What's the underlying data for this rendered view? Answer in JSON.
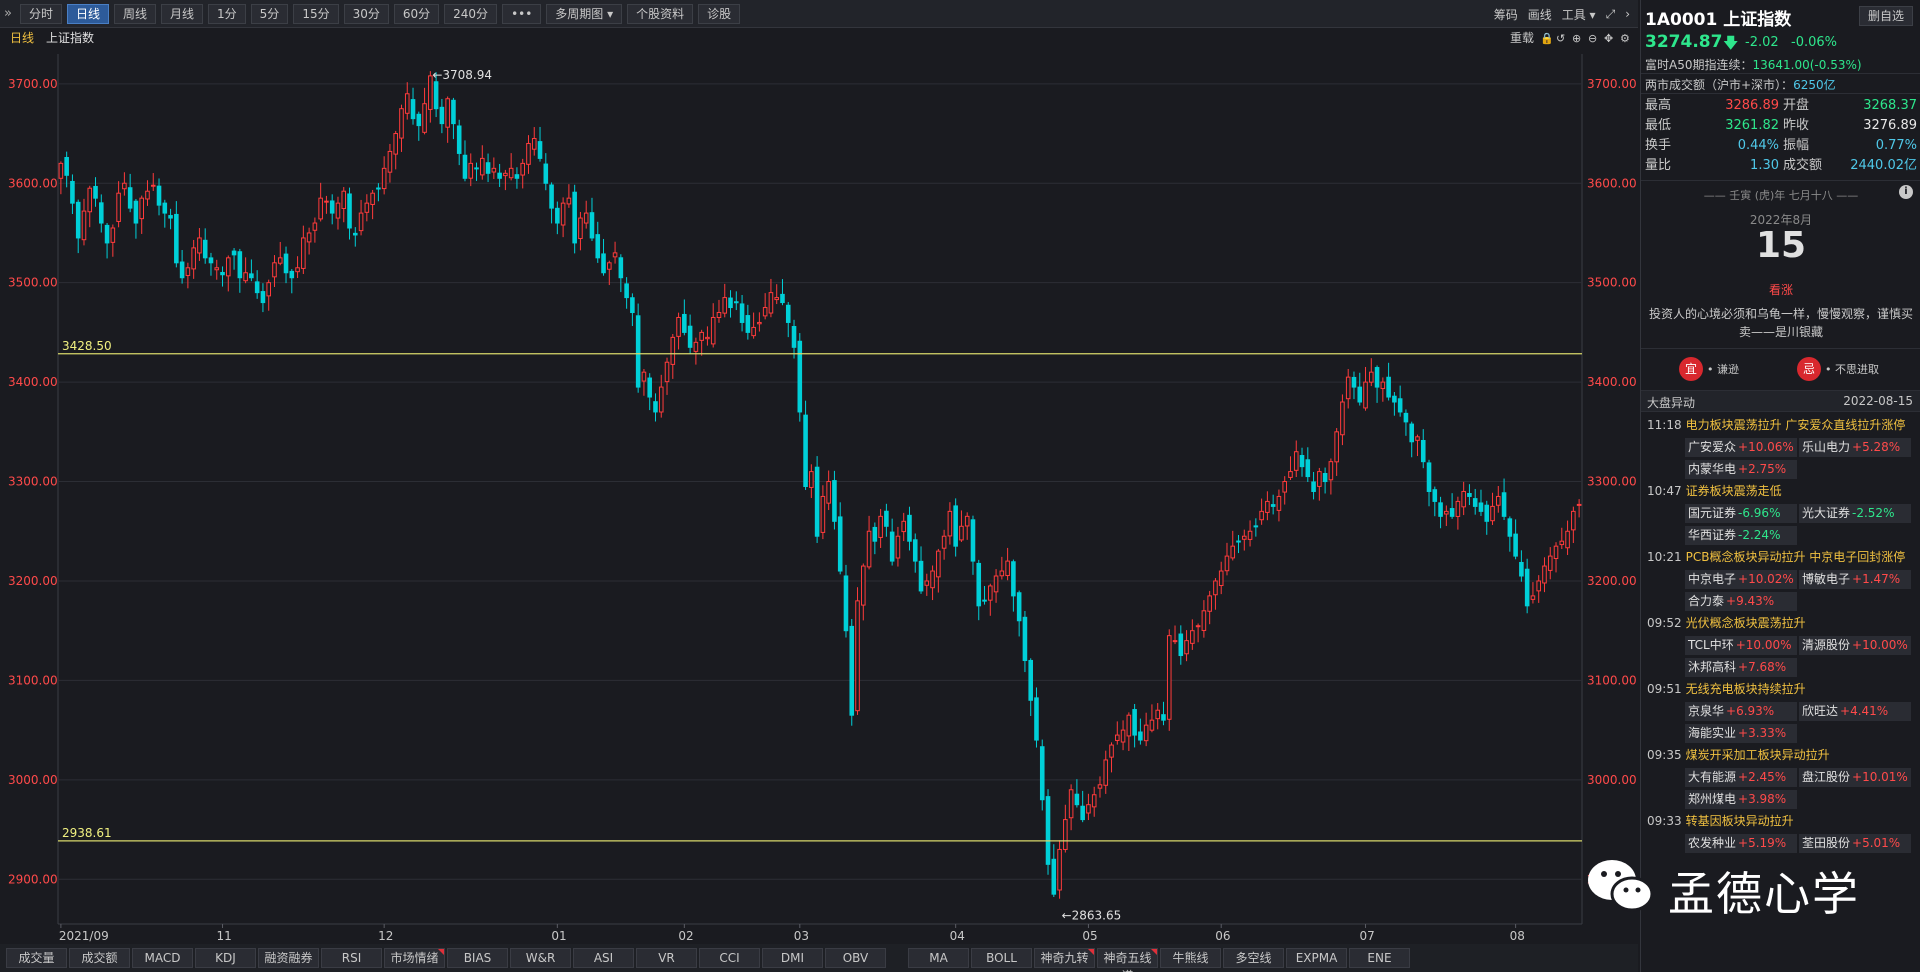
{
  "toolbar": {
    "collapse_icon": "double-chevron-right-icon",
    "buttons": [
      "分时",
      "日线",
      "周线",
      "月线",
      "1分",
      "5分",
      "15分",
      "30分",
      "60分",
      "240分"
    ],
    "more": "•••",
    "multi": "多周期图 ▾",
    "profile": "个股资料",
    "diagnose": "诊股",
    "active_index": 1,
    "right": [
      "筹码",
      "画线",
      "工具 ▾"
    ],
    "right_icons": [
      "expand-icon",
      "chevron-right-icon"
    ]
  },
  "chart_header": {
    "period": "日线",
    "name": "上证指数",
    "right_label": "重载",
    "icons": [
      "lock-icon",
      "undo-icon",
      "zoom-in-icon",
      "zoom-out-icon",
      "move-icon",
      "gear-icon"
    ]
  },
  "chart_data": {
    "type": "candlestick",
    "title": "上证指数",
    "y_ticks": [
      "3700.00",
      "3600.00",
      "3500.00",
      "3400.00",
      "3300.00",
      "3200.00",
      "3100.00",
      "3000.00",
      "2900.00"
    ],
    "ylim": [
      2855,
      3730
    ],
    "x_ticks": [
      "2021/09",
      "11",
      "12",
      "01",
      "02",
      "03",
      "04",
      "05",
      "06",
      "07",
      "08"
    ],
    "x_tick_index": [
      0,
      28,
      56,
      86,
      108,
      128,
      155,
      178,
      201,
      226,
      252
    ],
    "h_lines": [
      3428.5,
      2938.61
    ],
    "h_line_labels": [
      "3428.50",
      "2938.61"
    ],
    "annotations": [
      {
        "label": "←3708.94",
        "value": 3708.94,
        "index": 64
      },
      {
        "label": "←2863.65",
        "value": 2863.65,
        "index": 173
      }
    ],
    "up_color": "#ff3b3b",
    "down_color": "#00d0d8",
    "closes": [
      3620,
      3608,
      3580,
      3545,
      3572,
      3595,
      3585,
      3560,
      3540,
      3555,
      3590,
      3600,
      3575,
      3560,
      3585,
      3592,
      3598,
      3578,
      3570,
      3565,
      3520,
      3505,
      3515,
      3535,
      3545,
      3525,
      3520,
      3515,
      3508,
      3525,
      3528,
      3505,
      3510,
      3505,
      3490,
      3480,
      3500,
      3520,
      3525,
      3510,
      3505,
      3515,
      3545,
      3550,
      3560,
      3585,
      3582,
      3570,
      3580,
      3592,
      3555,
      3548,
      3570,
      3580,
      3590,
      3595,
      3615,
      3632,
      3650,
      3675,
      3690,
      3665,
      3658,
      3680,
      3708,
      3675,
      3660,
      3685,
      3660,
      3630,
      3605,
      3620,
      3615,
      3625,
      3610,
      3615,
      3605,
      3610,
      3615,
      3605,
      3620,
      3640,
      3645,
      3625,
      3600,
      3575,
      3560,
      3580,
      3585,
      3540,
      3565,
      3570,
      3545,
      3525,
      3510,
      3520,
      3530,
      3505,
      3485,
      3470,
      3395,
      3410,
      3385,
      3370,
      3395,
      3420,
      3445,
      3465,
      3450,
      3435,
      3440,
      3450,
      3445,
      3465,
      3470,
      3485,
      3475,
      3480,
      3460,
      3450,
      3455,
      3460,
      3475,
      3490,
      3485,
      3480,
      3460,
      3435,
      3370,
      3295,
      3310,
      3245,
      3285,
      3300,
      3260,
      3210,
      3150,
      3065,
      3180,
      3215,
      3250,
      3240,
      3265,
      3255,
      3220,
      3245,
      3260,
      3240,
      3220,
      3190,
      3200,
      3210,
      3230,
      3245,
      3270,
      3235,
      3255,
      3265,
      3220,
      3175,
      3180,
      3195,
      3205,
      3210,
      3220,
      3185,
      3160,
      3120,
      3080,
      3040,
      2980,
      2915,
      2885,
      2930,
      2960,
      2990,
      2975,
      2960,
      2975,
      2985,
      2995,
      3020,
      3035,
      3045,
      3050,
      3065,
      3045,
      3040,
      3055,
      3060,
      3070,
      3060,
      3145,
      3140,
      3125,
      3140,
      3150,
      3155,
      3170,
      3185,
      3200,
      3210,
      3225,
      3235,
      3240,
      3245,
      3250,
      3255,
      3270,
      3280,
      3275,
      3285,
      3300,
      3310,
      3330,
      3315,
      3305,
      3290,
      3310,
      3300,
      3320,
      3350,
      3380,
      3405,
      3395,
      3380,
      3400,
      3410,
      3395,
      3400,
      3385,
      3380,
      3370,
      3360,
      3340,
      3345,
      3320,
      3290,
      3280,
      3265,
      3270,
      3265,
      3280,
      3290,
      3285,
      3275,
      3270,
      3260,
      3275,
      3285,
      3265,
      3245,
      3225,
      3205,
      3175,
      3185,
      3200,
      3215,
      3225,
      3235,
      3240,
      3250,
      3270,
      3277
    ]
  },
  "indicators": [
    "成交量",
    "成交额",
    "MACD",
    "KDJ",
    "融资融券",
    "RSI",
    "市场情绪",
    "BIAS",
    "W&R",
    "ASI",
    "VR",
    "CCI",
    "DMI",
    "OBV"
  ],
  "indicators2": [
    "MA",
    "BOLL",
    "神奇九转",
    "神奇五线谱",
    "牛熊线",
    "多空线",
    "EXPMA",
    "ENE"
  ],
  "panel": {
    "code_name": "1A0001 上证指数",
    "del_button": "删自选",
    "price": "3274.87",
    "arrow": "🡇",
    "change": "-2.02",
    "change_pct": "-0.06%",
    "futures_label": "富时A50期指连续：",
    "futures_value": "13641.00(-0.53%)",
    "turnover_label": "两市成交额（沪市+深市）：",
    "turnover_value": "6250亿",
    "grid": [
      {
        "l1": "最高",
        "v1": "3286.89",
        "c1": "red",
        "l2": "开盘",
        "v2": "3268.37",
        "c2": "grn"
      },
      {
        "l1": "最低",
        "v1": "3261.82",
        "c1": "grn",
        "l2": "昨收",
        "v2": "3276.89",
        "c2": "wht"
      },
      {
        "l1": "换手",
        "v1": "0.44%",
        "c1": "cyn",
        "l2": "振幅",
        "v2": "0.77%",
        "c2": "cyn"
      },
      {
        "l1": "量比",
        "v1": "1.30",
        "c1": "cyn",
        "l2": "成交额",
        "v2": "2440.02亿",
        "c2": "cyn"
      }
    ],
    "lunar": "——  壬寅 (虎)年 七月十八  ——",
    "year_month": "2022年8月",
    "day": "15",
    "day_tag": "看涨",
    "quote": "投资人的心境必须和乌龟一样，慢慢观察，谨慎买卖——是川银藏",
    "advice_yes": "宜",
    "advice_yes_text": "• 谦逊",
    "advice_no": "忌",
    "advice_no_text": "• 不思进取",
    "moves_title": "大盘异动",
    "moves_date": "2022-08-15",
    "moves": [
      {
        "time": "11:18",
        "text": "电力板块震荡拉升 广安爱众直线拉升涨停",
        "stocks": [
          [
            "广安爱众",
            "+10.06%"
          ],
          [
            "乐山电力",
            "+5.28%"
          ],
          [
            "内蒙华电",
            "+2.75%"
          ]
        ]
      },
      {
        "time": "10:47",
        "text": "证券板块震荡走低",
        "stocks": [
          [
            "国元证券",
            "-6.96%"
          ],
          [
            "光大证券",
            "-2.52%"
          ],
          [
            "华西证券",
            "-2.24%"
          ]
        ]
      },
      {
        "time": "10:21",
        "text": "PCB概念板块异动拉升 中京电子回封涨停",
        "stocks": [
          [
            "中京电子",
            "+10.02%"
          ],
          [
            "博敏电子",
            "+1.47%"
          ],
          [
            "合力泰",
            "+9.43%"
          ]
        ]
      },
      {
        "time": "09:52",
        "text": "光伏概念板块震荡拉升",
        "stocks": [
          [
            "TCL中环",
            "+10.00%"
          ],
          [
            "清源股份",
            "+10.00%"
          ],
          [
            "沐邦高科",
            "+7.68%"
          ]
        ]
      },
      {
        "time": "09:51",
        "text": "无线充电板块持续拉升",
        "stocks": [
          [
            "京泉华",
            "+6.93%"
          ],
          [
            "欣旺达",
            "+4.41%"
          ],
          [
            "海能实业",
            "+3.33%"
          ]
        ]
      },
      {
        "time": "09:35",
        "text": "煤炭开采加工板块异动拉升",
        "stocks": [
          [
            "大有能源",
            "+2.45%"
          ],
          [
            "盘江股份",
            "+10.01%"
          ],
          [
            "郑州煤电",
            "+3.98%"
          ]
        ]
      },
      {
        "time": "09:33",
        "text": "转基因板块异动拉升",
        "stocks": [
          [
            "农发种业",
            "+5.19%"
          ],
          [
            "荃田股份",
            "+5.01%"
          ]
        ]
      }
    ]
  },
  "watermark": {
    "icon": "wechat-icon",
    "text": "孟德心学"
  }
}
